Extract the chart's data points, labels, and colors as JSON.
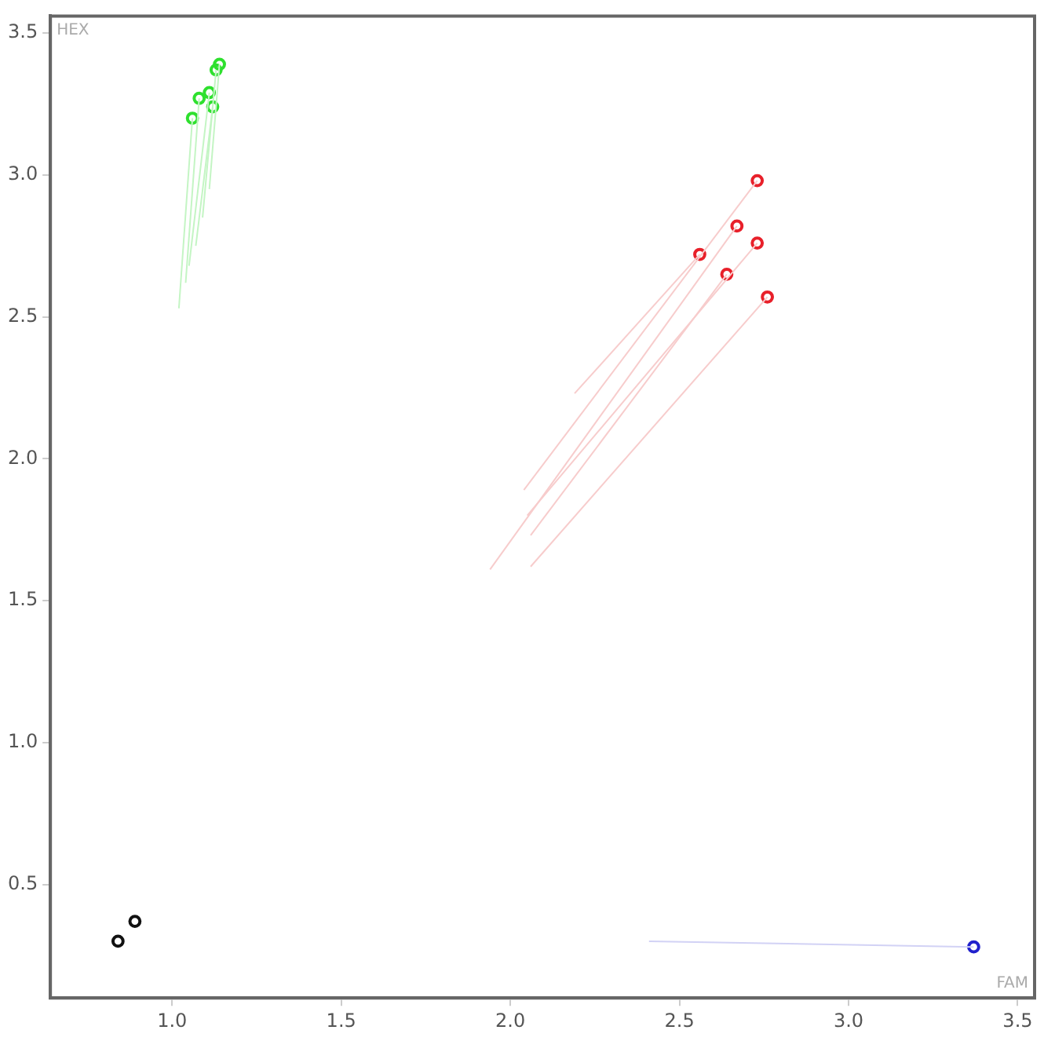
{
  "chart_data": {
    "type": "scatter",
    "xlabel": "FAM",
    "ylabel": "HEX",
    "xlim": [
      0.64,
      3.55
    ],
    "ylim": [
      0.1,
      3.56
    ],
    "xticks": [
      {
        "value": 1,
        "label": "1.0"
      },
      {
        "value": 1.5,
        "label": "1.5"
      },
      {
        "value": 2,
        "label": "2.0"
      },
      {
        "value": 2.5,
        "label": "2.5"
      },
      {
        "value": 3,
        "label": "3.0"
      },
      {
        "value": 3.5,
        "label": "3.5"
      }
    ],
    "yticks": [
      {
        "value": 0.5,
        "label": "0.5"
      },
      {
        "value": 1,
        "label": "1.0"
      },
      {
        "value": 1.5,
        "label": "1.5"
      },
      {
        "value": 2,
        "label": "2.0"
      },
      {
        "value": 2.5,
        "label": "2.5"
      },
      {
        "value": 3,
        "label": "3.0"
      },
      {
        "value": 3.5,
        "label": "3.5"
      }
    ],
    "grid": false,
    "legend": false,
    "marker": "circle",
    "series": [
      {
        "type": "line",
        "marker": "none",
        "color": "#c4f5c4",
        "x": [
          1.02,
          1.06
        ],
        "values": [
          2.53,
          3.2
        ]
      },
      {
        "type": "line",
        "marker": "none",
        "color": "#c4f5c4",
        "x": [
          1.04,
          1.08
        ],
        "values": [
          2.62,
          3.27
        ]
      },
      {
        "type": "line",
        "marker": "none",
        "color": "#c4f5c4",
        "x": [
          1.05,
          1.11
        ],
        "values": [
          2.68,
          3.29
        ]
      },
      {
        "type": "line",
        "marker": "none",
        "color": "#c4f5c4",
        "x": [
          1.07,
          1.12
        ],
        "values": [
          2.75,
          3.24
        ]
      },
      {
        "type": "line",
        "marker": "none",
        "color": "#c4f5c4",
        "x": [
          1.09,
          1.13
        ],
        "values": [
          2.85,
          3.37
        ]
      },
      {
        "type": "line",
        "marker": "none",
        "color": "#c4f5c4",
        "x": [
          1.11,
          1.14
        ],
        "values": [
          2.95,
          3.39
        ]
      },
      {
        "type": "line",
        "marker": "none",
        "color": "#f7cccc",
        "x": [
          2.19,
          2.56
        ],
        "values": [
          2.23,
          2.72
        ]
      },
      {
        "type": "line",
        "marker": "none",
        "color": "#f7cccc",
        "x": [
          2.04,
          2.73
        ],
        "values": [
          1.89,
          2.98
        ]
      },
      {
        "type": "line",
        "marker": "none",
        "color": "#f7cccc",
        "x": [
          1.94,
          2.67
        ],
        "values": [
          1.61,
          2.82
        ]
      },
      {
        "type": "line",
        "marker": "none",
        "color": "#f7cccc",
        "x": [
          2.06,
          2.64
        ],
        "values": [
          1.73,
          2.65
        ]
      },
      {
        "type": "line",
        "marker": "none",
        "color": "#f7cccc",
        "x": [
          2.05,
          2.73
        ],
        "values": [
          1.8,
          2.76
        ]
      },
      {
        "type": "line",
        "marker": "none",
        "color": "#f7cccc",
        "x": [
          2.06,
          2.76
        ],
        "values": [
          1.62,
          2.57
        ]
      },
      {
        "type": "line",
        "marker": "none",
        "color": "#d2d2f5",
        "x": [
          2.41,
          3.37
        ],
        "values": [
          0.3,
          0.28
        ]
      },
      {
        "type": "scatter",
        "color": "#2ee02e",
        "x": [
          1.06,
          1.08,
          1.11,
          1.12,
          1.13,
          1.14
        ],
        "values": [
          3.2,
          3.27,
          3.29,
          3.24,
          3.37,
          3.39
        ]
      },
      {
        "type": "scatter",
        "color": "#e8202a",
        "x": [
          2.73,
          2.67,
          2.56,
          2.73,
          2.64,
          2.76
        ],
        "values": [
          2.98,
          2.82,
          2.72,
          2.76,
          2.65,
          2.57
        ]
      },
      {
        "type": "scatter",
        "color": "#111111",
        "x": [
          0.84,
          0.89
        ],
        "values": [
          0.3,
          0.37
        ]
      },
      {
        "type": "scatter",
        "color": "#2020cc",
        "x": [
          3.37
        ],
        "values": [
          0.28
        ]
      }
    ]
  }
}
